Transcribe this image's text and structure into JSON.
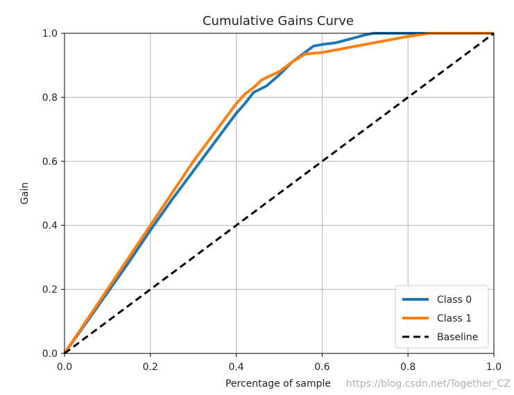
{
  "watermark": "https://blog.csdn.net/Together_CZ",
  "chart_data": {
    "type": "line",
    "title": "Cumulative Gains Curve",
    "xlabel": "Percentage of sample",
    "ylabel": "Gain",
    "xlim": [
      0,
      1
    ],
    "ylim": [
      0,
      1
    ],
    "xticks": [
      0.0,
      0.2,
      0.4,
      0.6,
      0.8,
      1.0
    ],
    "yticks": [
      0.0,
      0.2,
      0.4,
      0.6,
      0.8,
      1.0
    ],
    "xtick_labels": [
      "0.0",
      "0.2",
      "0.4",
      "0.6",
      "0.8",
      "1.0"
    ],
    "ytick_labels": [
      "0.0",
      "0.2",
      "0.4",
      "0.6",
      "0.8",
      "1.0"
    ],
    "grid": true,
    "legend_position": "lower-right",
    "series": [
      {
        "name": "Class 0",
        "color": "#1f77b4",
        "style": "solid",
        "x": [
          0.0,
          0.05,
          0.1,
          0.15,
          0.2,
          0.25,
          0.3,
          0.35,
          0.4,
          0.42,
          0.44,
          0.47,
          0.5,
          0.53,
          0.56,
          0.58,
          0.6,
          0.63,
          0.66,
          0.7,
          0.72,
          0.75,
          0.77,
          0.8,
          1.0
        ],
        "y": [
          0.0,
          0.095,
          0.19,
          0.285,
          0.385,
          0.48,
          0.57,
          0.66,
          0.75,
          0.78,
          0.815,
          0.835,
          0.87,
          0.91,
          0.94,
          0.96,
          0.965,
          0.97,
          0.98,
          0.995,
          1.0,
          1.0,
          1.0,
          1.0,
          1.0
        ]
      },
      {
        "name": "Class 1",
        "color": "#ff7f0e",
        "style": "solid",
        "x": [
          0.0,
          0.05,
          0.1,
          0.15,
          0.2,
          0.25,
          0.3,
          0.35,
          0.4,
          0.42,
          0.44,
          0.46,
          0.5,
          0.53,
          0.56,
          0.6,
          0.64,
          0.68,
          0.72,
          0.76,
          0.8,
          0.85,
          1.0
        ],
        "y": [
          0.0,
          0.1,
          0.2,
          0.3,
          0.4,
          0.5,
          0.6,
          0.69,
          0.78,
          0.81,
          0.83,
          0.855,
          0.88,
          0.91,
          0.935,
          0.94,
          0.95,
          0.96,
          0.97,
          0.98,
          0.99,
          1.0,
          1.0
        ]
      },
      {
        "name": "Baseline",
        "color": "#000000",
        "style": "dashed",
        "x": [
          0.0,
          1.0
        ],
        "y": [
          0.0,
          1.0
        ]
      }
    ]
  }
}
